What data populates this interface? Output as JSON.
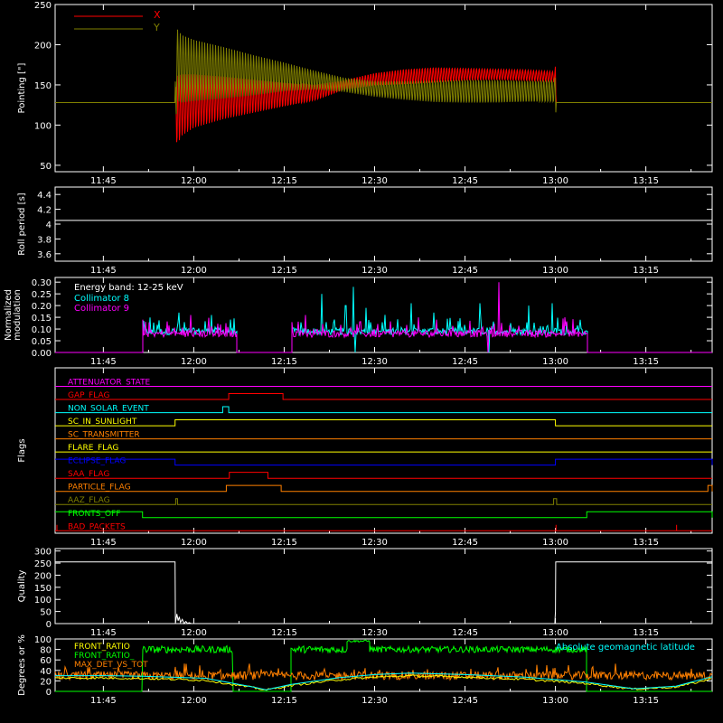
{
  "time_ticks": [
    "11:45",
    "12:00",
    "12:15",
    "12:30",
    "12:45",
    "13:00",
    "13:15"
  ],
  "time_tick_minutes": [
    705,
    720,
    735,
    750,
    765,
    780,
    795
  ],
  "x_range_minutes": [
    697,
    806
  ],
  "chart_data": [
    {
      "id": "pointing",
      "type": "line",
      "ylabel": "Pointing [\"]",
      "ylim": [
        42,
        250
      ],
      "yticks": [
        50,
        100,
        150,
        200,
        250
      ],
      "legend_placement": "top-left",
      "series": [
        {
          "name": "X",
          "color": "#ff0000",
          "x": [
            697,
            716.9,
            717.0,
            717.2,
            718,
            720,
            725,
            730,
            735,
            740,
            745,
            750,
            755,
            760,
            765,
            770,
            775,
            779.9,
            780.0,
            780.1,
            806
          ],
          "center": [
            128,
            128,
            125,
            118,
            125,
            130,
            134,
            136,
            138,
            140,
            150,
            157,
            160,
            162,
            163,
            163,
            162,
            160,
            150,
            128,
            128
          ],
          "amplitude": [
            0,
            0,
            30,
            45,
            40,
            35,
            28,
            22,
            16,
            10,
            6,
            8,
            10,
            10,
            8,
            7,
            7,
            7,
            25,
            0,
            0
          ]
        },
        {
          "name": "Y",
          "color": "#808000",
          "x": [
            697,
            716.9,
            717.0,
            717.2,
            718,
            720,
            725,
            730,
            735,
            740,
            745,
            750,
            755,
            760,
            765,
            770,
            775,
            779.9,
            780.0,
            780.1,
            806
          ],
          "center": [
            128,
            128,
            160,
            175,
            170,
            168,
            165,
            162,
            160,
            156,
            150,
            145,
            143,
            142,
            142,
            142,
            142,
            142,
            150,
            128,
            128
          ],
          "amplitude": [
            0,
            0,
            60,
            45,
            42,
            38,
            32,
            25,
            18,
            12,
            9,
            10,
            12,
            14,
            15,
            15,
            14,
            14,
            60,
            0,
            0
          ]
        }
      ]
    },
    {
      "id": "roll_period",
      "type": "line",
      "ylabel": "Roll period [s]",
      "ylim": [
        3.5,
        4.5
      ],
      "yticks": [
        3.6,
        3.8,
        4.0,
        4.2,
        4.4
      ],
      "series": [
        {
          "color": "#ffffff",
          "x": [
            697,
            806
          ],
          "y": [
            4.05,
            4.05
          ]
        }
      ]
    },
    {
      "id": "modulation",
      "type": "line",
      "ylabel": [
        "Normalized",
        "modulation"
      ],
      "ylim": [
        0,
        0.32
      ],
      "yticks": [
        0.0,
        0.05,
        0.1,
        0.15,
        0.2,
        0.25,
        0.3
      ],
      "ytick_labels": [
        "0.00",
        "0.05",
        "0.10",
        "0.15",
        "0.20",
        "0.25",
        "0.30"
      ],
      "legend_title": "Energy band: 12-25 keV",
      "series": [
        {
          "name": "Collimator 8",
          "color": "#00ffff",
          "active": [
            [
              711.5,
              727.0
            ],
            [
              736.2,
              785.2
            ]
          ],
          "baseline": 0.09,
          "spikes": [
            [
              717.5,
              0.17
            ],
            [
              723,
              0.16
            ],
            [
              741.2,
              0.25
            ],
            [
              745.2,
              0.2
            ],
            [
              746.5,
              0.28
            ],
            [
              748.6,
              0.19
            ],
            [
              756.1,
              0.21
            ],
            [
              759.8,
              0.17
            ],
            [
              767.5,
              0.21
            ],
            [
              775.5,
              0.2
            ],
            [
              779.5,
              0.21
            ]
          ],
          "dips": [
            [
              746.8,
              0.0
            ],
            [
              769,
              0.0
            ]
          ]
        },
        {
          "name": "Collimator 9",
          "color": "#ff00ff",
          "active": [
            [
              711.5,
              727.0
            ],
            [
              736.2,
              785.2
            ]
          ],
          "baseline": 0.08,
          "spikes": [
            [
              719.5,
              0.16
            ],
            [
              738.5,
              0.16
            ],
            [
              760.3,
              0.14
            ],
            [
              770.6,
              0.3
            ],
            [
              781.5,
              0.15
            ]
          ],
          "dips": [
            [
              768.8,
              0.0
            ]
          ]
        }
      ]
    },
    {
      "id": "flags",
      "type": "step",
      "ylabel": "Flags",
      "flags": [
        {
          "name": "ATTENUATOR_STATE",
          "color": "#ff00ff",
          "high": []
        },
        {
          "name": "GAP_FLAG",
          "color": "#ff0000",
          "high": [
            [
              725.8,
              734.8
            ]
          ]
        },
        {
          "name": "NON_SOLAR_EVENT",
          "color": "#00ffff",
          "high": [
            [
              724.8,
              725.8
            ]
          ]
        },
        {
          "name": "SC_IN_SUNLIGHT",
          "color": "#ffff00",
          "high": [
            [
              716.9,
              780.0
            ]
          ]
        },
        {
          "name": "SC_TRANSMITTER",
          "color": "#ff8000",
          "high": []
        },
        {
          "name": "FLARE_FLAG",
          "color": "#ffff00",
          "high": []
        },
        {
          "name": "ECLIPSE_FLAG",
          "color": "#0000ff",
          "high": [
            [
              697,
              716.9
            ],
            [
              780.0,
              806
            ]
          ]
        },
        {
          "name": "SAA_FLAG",
          "color": "#ff0000",
          "high": [
            [
              725.9,
              732.3
            ]
          ]
        },
        {
          "name": "PARTICLE_FLAG",
          "color": "#ff8000",
          "high": [
            [
              725.4,
              734.5
            ],
            [
              805.3,
              806
            ]
          ]
        },
        {
          "name": "AAZ_FLAG",
          "color": "#808000",
          "high": [
            [
              717.0,
              717.3
            ],
            [
              779.7,
              780.2
            ]
          ]
        },
        {
          "name": "FRONTS_OFF",
          "color": "#00ff00",
          "high": [
            [
              697,
              711.5
            ],
            [
              785.2,
              806
            ]
          ]
        },
        {
          "name": "BAD_PACKETS",
          "color": "#ff0000",
          "spikes": [
            697.3,
            780.1,
            800.1
          ]
        }
      ]
    },
    {
      "id": "quality",
      "type": "line",
      "ylabel": "Quality",
      "ylim": [
        0,
        310
      ],
      "yticks": [
        0,
        50,
        100,
        150,
        200,
        250,
        300
      ],
      "series": [
        {
          "color": "#ffffff",
          "x": [
            697,
            716.9,
            716.95,
            717.2,
            717.4,
            717.6,
            717.8,
            718.1,
            718.4,
            718.7,
            719.0,
            719.2,
            719.6,
            779.9,
            780.0,
            780.05,
            806
          ],
          "y": [
            255,
            255,
            0,
            40,
            12,
            28,
            5,
            18,
            0,
            9,
            0,
            4,
            0,
            0,
            50,
            255,
            255
          ]
        }
      ]
    },
    {
      "id": "degrees",
      "type": "line",
      "ylabel": "Degrees or %",
      "ylim": [
        0,
        100
      ],
      "yticks": [
        0,
        20,
        40,
        60,
        80,
        100
      ],
      "series": [
        {
          "name": "FRONT_RATIO",
          "color": "#ffff00"
        },
        {
          "name": "FRONT_RATIO_",
          "color": "#00ff00"
        },
        {
          "name": "MAX_DET_VS_TOT",
          "color": "#ff8000"
        },
        {
          "name": "Absolute geomagnetic latitude",
          "color": "#00ffff",
          "x": [
            697,
            705,
            711.5,
            722,
            730,
            732,
            736,
            744,
            750,
            756,
            765,
            775,
            785,
            793,
            800,
            806
          ],
          "y": [
            30,
            30,
            29,
            25,
            8,
            3,
            13,
            26,
            32,
            35,
            32,
            27,
            18,
            5,
            10,
            28
          ]
        }
      ],
      "green_segments": [
        {
          "x0": 697,
          "x1": 711.5,
          "level": 0
        },
        {
          "x0": 711.5,
          "x1": 726.5,
          "level": 80,
          "noise": 7
        },
        {
          "x0": 726.5,
          "x1": 736.2,
          "level": 0
        },
        {
          "x0": 736.2,
          "x1": 745.5,
          "level": 80,
          "noise": 7
        },
        {
          "x0": 745.5,
          "x1": 749.2,
          "level": 96,
          "noise": 2
        },
        {
          "x0": 749.2,
          "x1": 785.2,
          "level": 80,
          "noise": 6
        },
        {
          "x0": 785.2,
          "x1": 806,
          "level": 0
        }
      ],
      "orange": {
        "level": 30,
        "noise": 8
      }
    }
  ]
}
